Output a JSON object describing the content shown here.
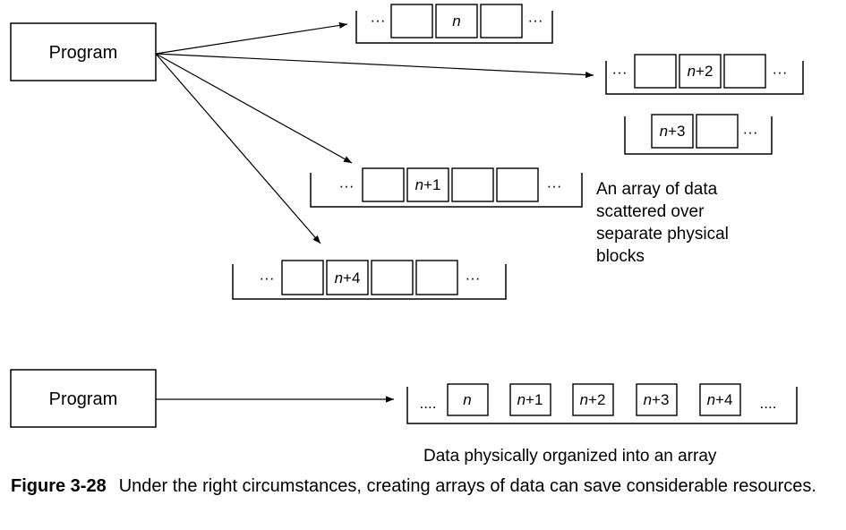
{
  "top": {
    "program_label": "Program",
    "note_lines": [
      "An array of data",
      "scattered over",
      "separate physical",
      "blocks"
    ],
    "blocks": [
      {
        "cells": [
          "",
          "n",
          ""
        ],
        "lead": "···",
        "trail": "···"
      },
      {
        "cells": [
          "",
          "n+2",
          ""
        ],
        "lead": "···",
        "trail": "···"
      },
      {
        "cells": [
          "n+3",
          ""
        ],
        "lead": "",
        "trail": "···"
      },
      {
        "cells": [
          "",
          "n+1",
          "",
          ""
        ],
        "lead": "···",
        "trail": "···"
      },
      {
        "cells": [
          "",
          "n+4",
          "",
          ""
        ],
        "lead": "···",
        "trail": "···"
      }
    ]
  },
  "bottom": {
    "program_label": "Program",
    "lead": "....",
    "cells": [
      "n",
      "n+1",
      "n+2",
      "n+3",
      "n+4"
    ],
    "trail": "....",
    "caption": "Data physically organized into an array"
  },
  "figure": {
    "label": "Figure 3-28",
    "caption": "Under the right circumstances, creating arrays of data can save considerable resources."
  }
}
